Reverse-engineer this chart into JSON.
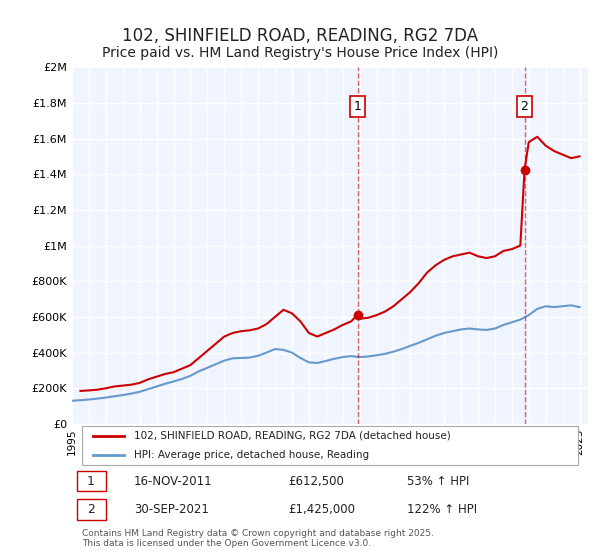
{
  "title": "102, SHINFIELD ROAD, READING, RG2 7DA",
  "subtitle": "Price paid vs. HM Land Registry's House Price Index (HPI)",
  "title_fontsize": 12,
  "subtitle_fontsize": 10,
  "background_color": "#ffffff",
  "plot_background_color": "#f0f4ff",
  "grid_color": "#ffffff",
  "ylim": [
    0,
    2000000
  ],
  "yticks": [
    0,
    200000,
    400000,
    600000,
    800000,
    1000000,
    1200000,
    1400000,
    1600000,
    1800000,
    2000000
  ],
  "ytick_labels": [
    "£0",
    "£200K",
    "£400K",
    "£600K",
    "£800K",
    "£1M",
    "£1.2M",
    "£1.4M",
    "£1.6M",
    "£1.8M",
    "£2M"
  ],
  "xlim_start": 1995.0,
  "xlim_end": 2025.5,
  "xlabel_years": [
    1995,
    1996,
    1997,
    1998,
    1999,
    2000,
    2001,
    2002,
    2003,
    2004,
    2005,
    2006,
    2007,
    2008,
    2009,
    2010,
    2011,
    2012,
    2013,
    2014,
    2015,
    2016,
    2017,
    2018,
    2019,
    2020,
    2021,
    2022,
    2023,
    2024,
    2025
  ],
  "red_line_color": "#cc0000",
  "blue_line_color": "#6699cc",
  "sale1_x": 2011.88,
  "sale1_y": 612500,
  "sale1_label": "1",
  "sale2_x": 2021.75,
  "sale2_y": 1425000,
  "sale2_label": "2",
  "vline1_x": 2011.88,
  "vline2_x": 2021.75,
  "vline_color": "#cc0000",
  "vline_style": "--",
  "vline_alpha": 0.6,
  "annotation_box_color": "#ffffff",
  "annotation_box_edge": "#cc0000",
  "legend_label_red": "102, SHINFIELD ROAD, READING, RG2 7DA (detached house)",
  "legend_label_blue": "HPI: Average price, detached house, Reading",
  "table_rows": [
    {
      "num": "1",
      "date": "16-NOV-2011",
      "price": "£612,500",
      "change": "53% ↑ HPI"
    },
    {
      "num": "2",
      "date": "30-SEP-2021",
      "price": "£1,425,000",
      "change": "122% ↑ HPI"
    }
  ],
  "footer": "Contains HM Land Registry data © Crown copyright and database right 2025.\nThis data is licensed under the Open Government Licence v3.0.",
  "red_hpi_data": {
    "x": [
      1995.5,
      1996.0,
      1996.5,
      1997.0,
      1997.5,
      1998.0,
      1998.5,
      1999.0,
      1999.5,
      2000.0,
      2000.5,
      2001.0,
      2001.5,
      2002.0,
      2002.5,
      2003.0,
      2003.5,
      2004.0,
      2004.5,
      2005.0,
      2005.5,
      2006.0,
      2006.5,
      2007.0,
      2007.5,
      2008.0,
      2008.5,
      2009.0,
      2009.5,
      2010.0,
      2010.5,
      2011.0,
      2011.5,
      2011.88,
      2012.0,
      2012.5,
      2013.0,
      2013.5,
      2014.0,
      2014.5,
      2015.0,
      2015.5,
      2016.0,
      2016.5,
      2017.0,
      2017.5,
      2018.0,
      2018.5,
      2019.0,
      2019.5,
      2020.0,
      2020.5,
      2021.0,
      2021.5,
      2021.75,
      2022.0,
      2022.5,
      2023.0,
      2023.5,
      2024.0,
      2024.5,
      2025.0
    ],
    "y": [
      185000,
      188000,
      192000,
      200000,
      210000,
      215000,
      220000,
      230000,
      250000,
      265000,
      280000,
      290000,
      310000,
      330000,
      370000,
      410000,
      450000,
      490000,
      510000,
      520000,
      525000,
      535000,
      560000,
      600000,
      640000,
      620000,
      575000,
      510000,
      490000,
      510000,
      530000,
      555000,
      575000,
      612500,
      590000,
      595000,
      610000,
      630000,
      660000,
      700000,
      740000,
      790000,
      850000,
      890000,
      920000,
      940000,
      950000,
      960000,
      940000,
      930000,
      940000,
      970000,
      980000,
      1000000,
      1425000,
      1580000,
      1610000,
      1560000,
      1530000,
      1510000,
      1490000,
      1500000
    ],
    "color": "#cc0000",
    "linewidth": 1.5
  },
  "blue_hpi_data": {
    "x": [
      1995.0,
      1995.5,
      1996.0,
      1996.5,
      1997.0,
      1997.5,
      1998.0,
      1998.5,
      1999.0,
      1999.5,
      2000.0,
      2000.5,
      2001.0,
      2001.5,
      2002.0,
      2002.5,
      2003.0,
      2003.5,
      2004.0,
      2004.5,
      2005.0,
      2005.5,
      2006.0,
      2006.5,
      2007.0,
      2007.5,
      2008.0,
      2008.5,
      2009.0,
      2009.5,
      2010.0,
      2010.5,
      2011.0,
      2011.5,
      2012.0,
      2012.5,
      2013.0,
      2013.5,
      2014.0,
      2014.5,
      2015.0,
      2015.5,
      2016.0,
      2016.5,
      2017.0,
      2017.5,
      2018.0,
      2018.5,
      2019.0,
      2019.5,
      2020.0,
      2020.5,
      2021.0,
      2021.5,
      2022.0,
      2022.5,
      2023.0,
      2023.5,
      2024.0,
      2024.5,
      2025.0
    ],
    "y": [
      130000,
      133000,
      137000,
      142000,
      148000,
      155000,
      162000,
      170000,
      180000,
      195000,
      210000,
      225000,
      238000,
      252000,
      270000,
      295000,
      315000,
      335000,
      355000,
      368000,
      370000,
      372000,
      382000,
      400000,
      420000,
      415000,
      400000,
      370000,
      345000,
      342000,
      353000,
      365000,
      375000,
      380000,
      375000,
      378000,
      385000,
      393000,
      405000,
      420000,
      438000,
      455000,
      475000,
      495000,
      510000,
      520000,
      530000,
      535000,
      530000,
      527000,
      535000,
      555000,
      570000,
      585000,
      610000,
      645000,
      660000,
      655000,
      660000,
      665000,
      655000
    ],
    "color": "#6699cc",
    "linewidth": 1.5
  }
}
